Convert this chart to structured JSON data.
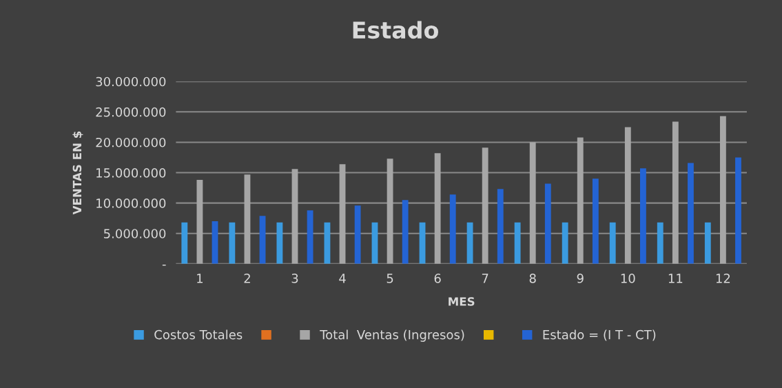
{
  "chart_data": {
    "type": "bar",
    "title": "Estado",
    "xlabel": "MES",
    "ylabel": "VENTAS EN $",
    "categories": [
      "1",
      "2",
      "3",
      "4",
      "5",
      "6",
      "7",
      "8",
      "9",
      "10",
      "11",
      "12"
    ],
    "series": [
      {
        "name": "Costos Totales",
        "color": "#3b9be0",
        "values": [
          6800000,
          6800000,
          6800000,
          6800000,
          6800000,
          6800000,
          6800000,
          6800000,
          6800000,
          6800000,
          6800000,
          6800000
        ]
      },
      {
        "color": "#e07020",
        "values": [
          null,
          null,
          null,
          null,
          null,
          null,
          null,
          null,
          null,
          null,
          null,
          null
        ]
      },
      {
        "name": "Total  Ventas (Ingresos)",
        "color": "#a6a6a6",
        "values": [
          13800000,
          14700000,
          15600000,
          16400000,
          17300000,
          18200000,
          19100000,
          20000000,
          20800000,
          22500000,
          23400000,
          24300000
        ]
      },
      {
        "color": "#e8b800",
        "values": [
          null,
          null,
          null,
          null,
          null,
          null,
          null,
          null,
          null,
          null,
          null,
          null
        ]
      },
      {
        "name": "Estado = (I T - CT)",
        "color": "#2464d4",
        "values": [
          7000000,
          7900000,
          8800000,
          9600000,
          10500000,
          11400000,
          12300000,
          13200000,
          14000000,
          15700000,
          16600000,
          17500000
        ]
      }
    ],
    "ylim": [
      0,
      30000000
    ],
    "yticks": [
      {
        "value": 0,
        "label": "-"
      },
      {
        "value": 5000000,
        "label": "5.000.000"
      },
      {
        "value": 10000000,
        "label": "10.000.000"
      },
      {
        "value": 15000000,
        "label": "15.000.000"
      },
      {
        "value": 20000000,
        "label": "20.000.000"
      },
      {
        "value": 25000000,
        "label": "25.000.000"
      },
      {
        "value": 30000000,
        "label": "30.000.000"
      }
    ],
    "grid": "y",
    "legend": "bottom"
  }
}
